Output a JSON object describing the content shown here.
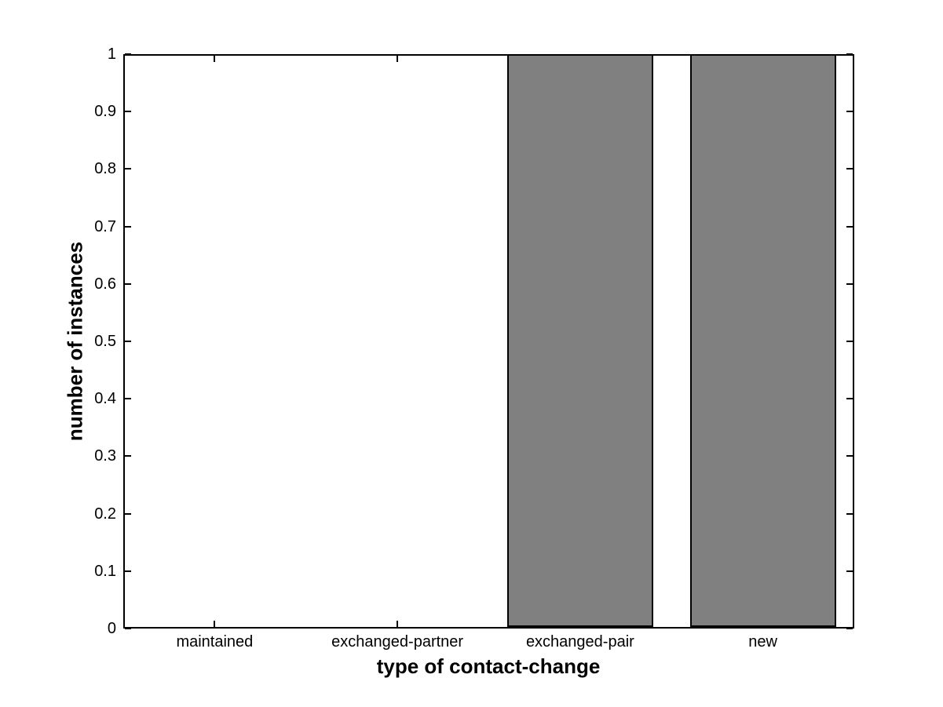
{
  "chart_data": {
    "type": "bar",
    "categories": [
      "maintained",
      "exchanged-partner",
      "exchanged-pair",
      "new"
    ],
    "values": [
      0,
      0,
      1,
      1
    ],
    "title": "",
    "xlabel": "type of contact-change",
    "ylabel": "number of instances",
    "ylim": [
      0,
      1
    ],
    "yticks": [
      0,
      0.1,
      0.2,
      0.3,
      0.4,
      0.5,
      0.6,
      0.7,
      0.8,
      0.9,
      1
    ],
    "ytick_labels": [
      "0",
      "0.1",
      "0.2",
      "0.3",
      "0.4",
      "0.5",
      "0.6",
      "0.7",
      "0.8",
      "0.9",
      "1"
    ],
    "bar_width_fraction": 0.8,
    "grid": false,
    "legend": null,
    "colors": {
      "bar_fill": "#808080",
      "bar_edge": "#000000",
      "axis": "#000000",
      "text": "#000000",
      "background": "#ffffff"
    }
  }
}
